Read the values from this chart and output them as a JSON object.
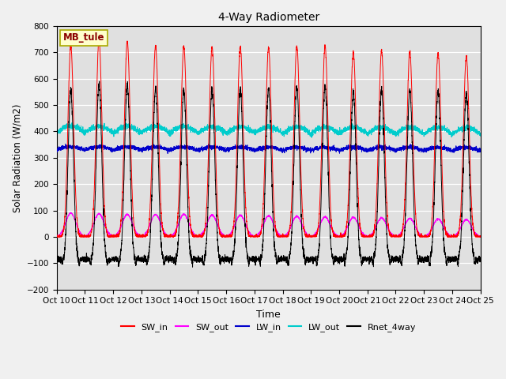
{
  "title": "4-Way Radiometer",
  "xlabel": "Time",
  "ylabel": "Solar Radiation (W/m2)",
  "ylim": [
    -200,
    800
  ],
  "yticks": [
    -200,
    -100,
    0,
    100,
    200,
    300,
    400,
    500,
    600,
    700,
    800
  ],
  "xtick_labels": [
    "Oct 10",
    "Oct 11",
    "Oct 12",
    "Oct 13",
    "Oct 14",
    "Oct 15",
    "Oct 16",
    "Oct 17",
    "Oct 18",
    "Oct 19",
    "Oct 20",
    "Oct 21",
    "Oct 22",
    "Oct 23",
    "Oct 24",
    "Oct 25"
  ],
  "station_label": "MB_tule",
  "plot_bg_color": "#e0e0e0",
  "fig_bg_color": "#f0f0f0",
  "colors": {
    "SW_in": "#ff0000",
    "SW_out": "#ff00ff",
    "LW_in": "#0000cc",
    "LW_out": "#00cccc",
    "Rnet_4way": "#000000"
  },
  "n_days": 15,
  "points_per_day": 288
}
